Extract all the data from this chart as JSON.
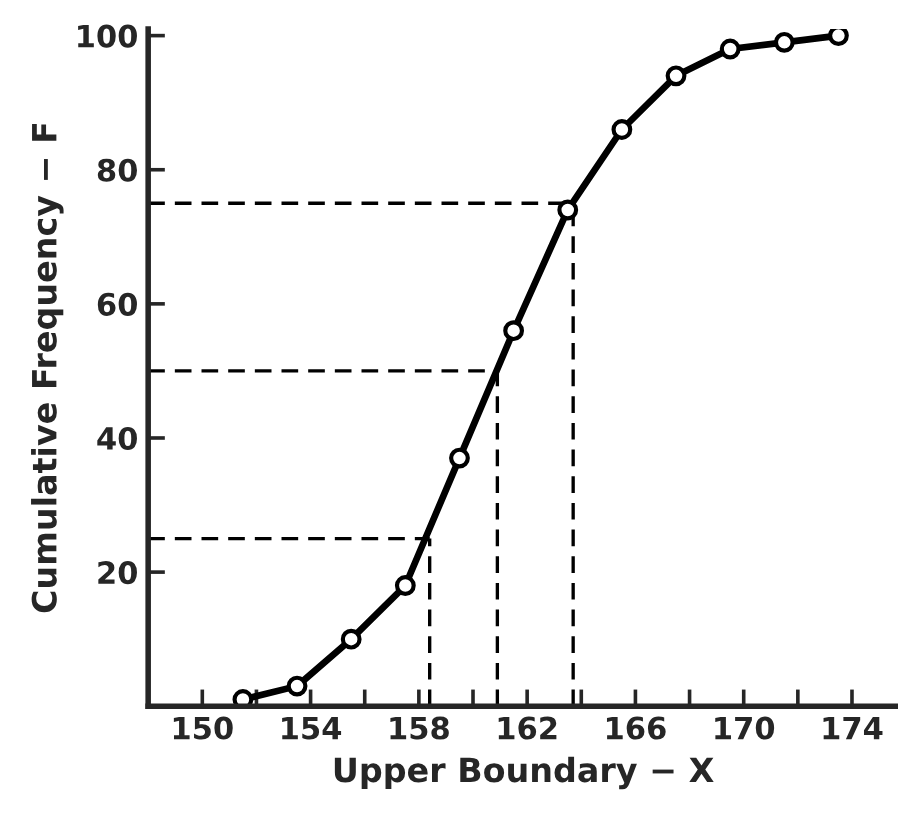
{
  "chart_data": {
    "type": "line",
    "xlabel": "Upper Boundary − X",
    "ylabel": "Cumulative Frequency − F",
    "x": [
      151.5,
      153.5,
      155.5,
      157.5,
      159.5,
      161.5,
      163.5,
      165.5,
      167.5,
      169.5,
      171.5,
      173.5
    ],
    "series": [
      {
        "color": "#000000",
        "values": [
          1,
          3,
          10,
          18,
          37,
          56,
          74,
          86,
          94,
          98,
          99,
          100
        ]
      }
    ],
    "xlim": [
      148,
      175.7
    ],
    "ylim": [
      0,
      101
    ],
    "xticks": [
      150,
      {
        "value": 152,
        "label": null
      },
      154,
      {
        "value": 156,
        "label": null
      },
      158,
      {
        "value": 160,
        "label": null
      },
      162,
      {
        "value": 164,
        "label": null
      },
      166,
      {
        "value": 168,
        "label": null
      },
      170,
      {
        "value": 172,
        "label": null
      },
      174
    ],
    "yticks": [
      20,
      40,
      60,
      80,
      100
    ],
    "ref_lines": [
      {
        "axis": "y",
        "value": 25,
        "line_style": "dashed",
        "color": "#000000"
      },
      {
        "axis": "y",
        "value": 50,
        "line_style": "dashed",
        "color": "#000000"
      },
      {
        "axis": "y",
        "value": 75,
        "line_style": "dashed",
        "color": "#000000"
      },
      {
        "axis": "x",
        "value": 158.4,
        "line_style": "dashed",
        "color": "#000000"
      },
      {
        "axis": "x",
        "value": 160.9,
        "line_style": "dashed",
        "color": "#000000"
      },
      {
        "axis": "x",
        "value": 163.7,
        "line_style": "dashed",
        "color": "#000000"
      }
    ],
    "marker": "circle",
    "line_style": "solid",
    "grid": false,
    "legend": false
  }
}
